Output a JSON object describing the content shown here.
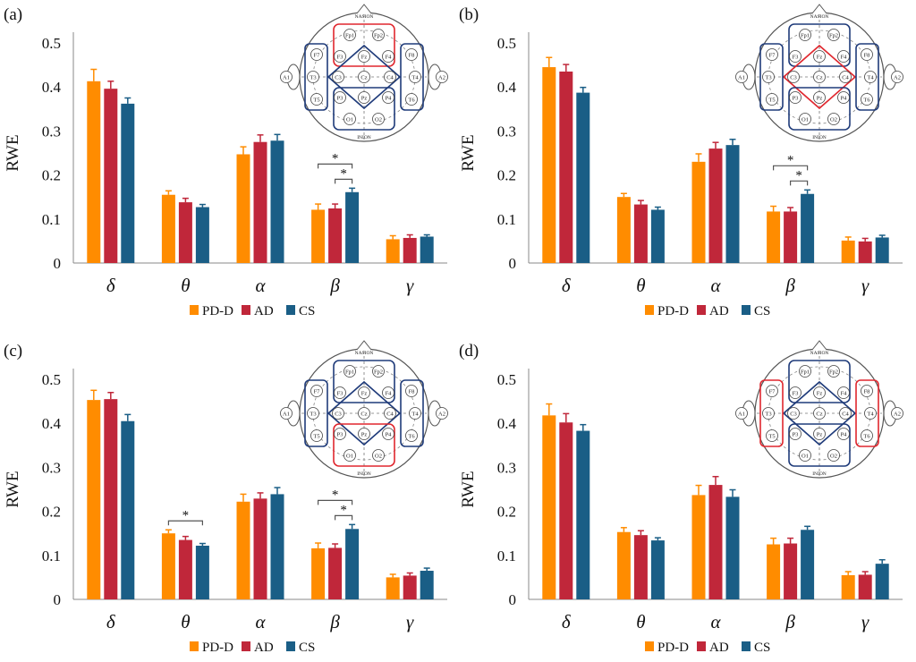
{
  "colors": {
    "PD-D": "#ff8c00",
    "AD": "#c0273a",
    "CS": "#1a5e86",
    "sig": "#555555",
    "axis": "#888888"
  },
  "legend": [
    "PD-D",
    "AD",
    "CS"
  ],
  "scalp_labels": {
    "nasion": "NASION",
    "inion": "INION",
    "electrodes": [
      "Fp1",
      "Fp2",
      "F7",
      "F3",
      "Fz",
      "F4",
      "F8",
      "A1",
      "T3",
      "C3",
      "Cz",
      "C4",
      "T4",
      "A2",
      "T5",
      "P3",
      "Pz",
      "P4",
      "T6",
      "O1",
      "O2"
    ]
  },
  "chart_data": [
    {
      "type": "bar",
      "panel_label": "(a)",
      "ylabel": "RWE",
      "ylim": [
        0,
        0.5
      ],
      "yticks": [
        "0",
        "0.1",
        "0.2",
        "0.3",
        "0.4",
        "0.5"
      ],
      "categories": [
        "δ",
        "θ",
        "α",
        "β",
        "γ"
      ],
      "series": [
        {
          "name": "PD-D",
          "values": [
            0.413,
            0.155,
            0.247,
            0.121,
            0.054
          ],
          "errors": [
            0.027,
            0.009,
            0.017,
            0.013,
            0.008
          ]
        },
        {
          "name": "AD",
          "values": [
            0.396,
            0.138,
            0.275,
            0.124,
            0.057
          ],
          "errors": [
            0.017,
            0.009,
            0.016,
            0.01,
            0.007
          ]
        },
        {
          "name": "CS",
          "values": [
            0.362,
            0.127,
            0.278,
            0.161,
            0.06
          ],
          "errors": [
            0.013,
            0.006,
            0.014,
            0.009,
            0.004
          ]
        }
      ],
      "significance": [
        {
          "category": "β",
          "from": "PD-D",
          "to": "CS",
          "label": "*"
        },
        {
          "category": "β",
          "from": "AD",
          "to": "CS",
          "label": "*"
        }
      ],
      "scalp_highlight": "frontal"
    },
    {
      "type": "bar",
      "panel_label": "(b)",
      "ylabel": "RWE",
      "ylim": [
        0,
        0.5
      ],
      "yticks": [
        "0",
        "0.1",
        "0.2",
        "0.3",
        "0.4",
        "0.5"
      ],
      "categories": [
        "δ",
        "θ",
        "α",
        "β",
        "γ"
      ],
      "series": [
        {
          "name": "PD-D",
          "values": [
            0.445,
            0.15,
            0.23,
            0.117,
            0.051
          ],
          "errors": [
            0.022,
            0.008,
            0.018,
            0.012,
            0.008
          ]
        },
        {
          "name": "AD",
          "values": [
            0.435,
            0.133,
            0.26,
            0.117,
            0.049
          ],
          "errors": [
            0.016,
            0.009,
            0.014,
            0.009,
            0.007
          ]
        },
        {
          "name": "CS",
          "values": [
            0.387,
            0.121,
            0.268,
            0.157,
            0.058
          ],
          "errors": [
            0.012,
            0.006,
            0.013,
            0.009,
            0.005
          ]
        }
      ],
      "significance": [
        {
          "category": "β",
          "from": "PD-D",
          "to": "CS",
          "label": "*"
        },
        {
          "category": "β",
          "from": "AD",
          "to": "CS",
          "label": "*"
        }
      ],
      "scalp_highlight": "central"
    },
    {
      "type": "bar",
      "panel_label": "(c)",
      "ylabel": "RWE",
      "ylim": [
        0,
        0.5
      ],
      "yticks": [
        "0",
        "0.1",
        "0.2",
        "0.3",
        "0.4",
        "0.5"
      ],
      "categories": [
        "δ",
        "θ",
        "α",
        "β",
        "γ"
      ],
      "series": [
        {
          "name": "PD-D",
          "values": [
            0.453,
            0.15,
            0.222,
            0.116,
            0.05
          ],
          "errors": [
            0.022,
            0.008,
            0.017,
            0.012,
            0.007
          ]
        },
        {
          "name": "AD",
          "values": [
            0.455,
            0.135,
            0.229,
            0.117,
            0.054
          ],
          "errors": [
            0.015,
            0.008,
            0.013,
            0.009,
            0.006
          ]
        },
        {
          "name": "CS",
          "values": [
            0.405,
            0.122,
            0.239,
            0.16,
            0.065
          ],
          "errors": [
            0.015,
            0.005,
            0.015,
            0.01,
            0.006
          ]
        }
      ],
      "significance": [
        {
          "category": "θ",
          "from": "PD-D",
          "to": "CS",
          "label": "*"
        },
        {
          "category": "β",
          "from": "PD-D",
          "to": "CS",
          "label": "*"
        },
        {
          "category": "β",
          "from": "AD",
          "to": "CS",
          "label": "*"
        }
      ],
      "scalp_highlight": "parietal"
    },
    {
      "type": "bar",
      "panel_label": "(d)",
      "ylabel": "RWE",
      "ylim": [
        0,
        0.5
      ],
      "yticks": [
        "0",
        "0.1",
        "0.2",
        "0.3",
        "0.4",
        "0.5"
      ],
      "categories": [
        "δ",
        "θ",
        "α",
        "β",
        "γ"
      ],
      "series": [
        {
          "name": "PD-D",
          "values": [
            0.418,
            0.153,
            0.237,
            0.125,
            0.055
          ],
          "errors": [
            0.026,
            0.01,
            0.022,
            0.014,
            0.008
          ]
        },
        {
          "name": "AD",
          "values": [
            0.402,
            0.146,
            0.26,
            0.127,
            0.056
          ],
          "errors": [
            0.02,
            0.01,
            0.019,
            0.012,
            0.007
          ]
        },
        {
          "name": "CS",
          "values": [
            0.383,
            0.134,
            0.233,
            0.158,
            0.081
          ],
          "errors": [
            0.014,
            0.006,
            0.016,
            0.008,
            0.009
          ]
        }
      ],
      "significance": [],
      "scalp_highlight": "temporal"
    }
  ]
}
